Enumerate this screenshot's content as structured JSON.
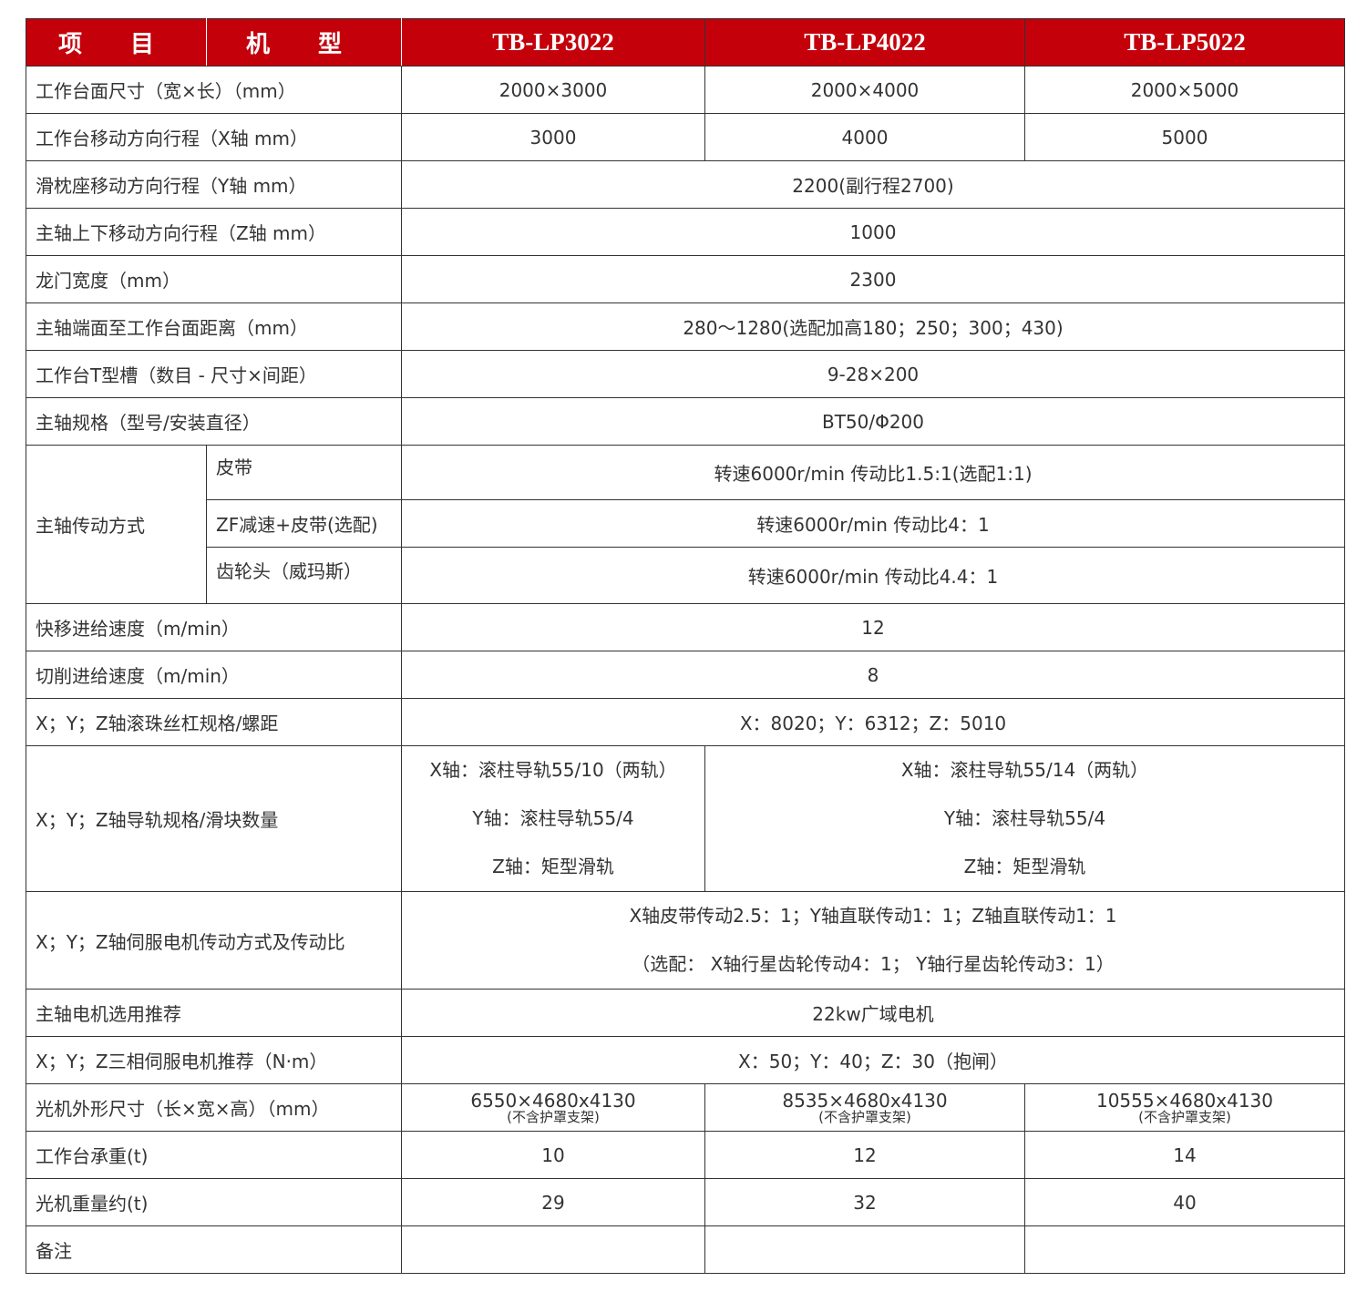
{
  "header": {
    "item": "项 目",
    "model": "机 型",
    "models": [
      "TB-LP3022",
      "TB-LP4022",
      "TB-LP5022"
    ]
  },
  "rows": {
    "r1": {
      "label": "工作台面尺寸（宽×长）（mm）",
      "values": [
        "2000×3000",
        "2000×4000",
        "2000×5000"
      ]
    },
    "r2": {
      "label": "工作台移动方向行程（X轴 mm）",
      "values": [
        "3000",
        "4000",
        "5000"
      ]
    },
    "r3": {
      "label": "滑枕座移动方向行程（Y轴 mm）",
      "value": "2200(副行程2700)"
    },
    "r4": {
      "label": "主轴上下移动方向行程（Z轴 mm）",
      "value": "1000"
    },
    "r5": {
      "label": "龙门宽度（mm）",
      "value": "2300"
    },
    "r6": {
      "label": "主轴端面至工作台面距离（mm）",
      "value": "280～1280(选配加高180；250；300；430)"
    },
    "r7": {
      "label": "工作台T型槽（数目 - 尺寸×间距）",
      "value": "9-28×200"
    },
    "r8": {
      "label": "主轴规格（型号/安装直径）",
      "value": "BT50/Φ200"
    },
    "drive": {
      "label": "主轴传动方式",
      "subs": [
        {
          "label": "皮带",
          "value": "转速6000r/min 传动比1.5:1(选配1:1)"
        },
        {
          "label": "ZF减速+皮带(选配)",
          "value": "转速6000r/min 传动比4：1"
        },
        {
          "label": "齿轮头（威玛斯）",
          "value": "转速6000r/min 传动比4.4：1"
        }
      ]
    },
    "r9": {
      "label": "快移进给速度（m/min）",
      "value": "12"
    },
    "r10": {
      "label": "切削进给速度（m/min）",
      "value": "8"
    },
    "r11": {
      "label": "X；Y；Z轴滚珠丝杠规格/螺距",
      "value": "X：8020；Y：6312；Z：5010"
    },
    "guide": {
      "label": "X；Y；Z轴导轨规格/滑块数量",
      "a": [
        "X轴：滚柱导轨55/10（两轨）",
        "Y轴：滚柱导轨55/4",
        "Z轴：矩型滑轨"
      ],
      "b": [
        "X轴：滚柱导轨55/14（两轨）",
        "Y轴：滚柱导轨55/4",
        "Z轴：矩型滑轨"
      ]
    },
    "servo": {
      "label": "X；Y；Z轴伺服电机传动方式及传动比",
      "lines": [
        "X轴皮带传动2.5：1；Y轴直联传动1：1；Z轴直联传动1：1",
        "（选配： X轴行星齿轮传动4：1； Y轴行星齿轮传动3：1）"
      ]
    },
    "r12": {
      "label": "主轴电机选用推荐",
      "value": "22kw广域电机"
    },
    "r13": {
      "label": "X；Y；Z三相伺服电机推荐（N·m）",
      "value": "X：50；Y：40；Z：30（抱闸）"
    },
    "r14": {
      "label": "光机外形尺寸（长×宽×高）（mm）",
      "values": [
        "6550×4680x4130",
        "8535×4680x4130",
        "10555×4680x4130"
      ],
      "note": "(不含护罩支架)"
    },
    "r15": {
      "label": "工作台承重(t)",
      "values": [
        "10",
        "12",
        "14"
      ]
    },
    "r16": {
      "label": "光机重量约(t)",
      "values": [
        "29",
        "32",
        "40"
      ]
    },
    "r17": {
      "label": "备注"
    }
  },
  "colors": {
    "header_bg": "#c4000b",
    "header_text": "#ffffff",
    "text": "#333333"
  }
}
